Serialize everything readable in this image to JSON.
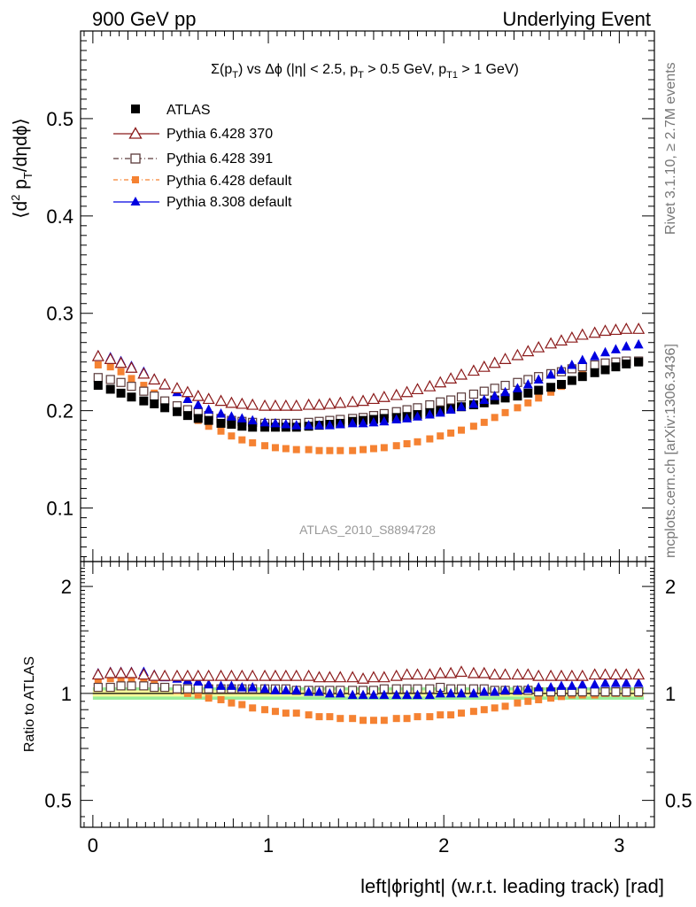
{
  "header": {
    "left": "900 GeV pp",
    "right": "Underlying Event"
  },
  "side_labels": {
    "top": "Rivet 3.1.10, ≥ 2.7M events",
    "bottom": "mcplots.cern.ch [arXiv:1306.3436]"
  },
  "plot_title": "Σ(p_T) vs Δϕ (|η| < 2.5, p_T > 0.5 GeV, p_T1 > 1 GeV)",
  "watermark": "ATLAS_2010_S8894728",
  "main_ylabel": "⟨d² p_T/dηdϕ⟩",
  "ratio_ylabel": "Ratio to ATLAS",
  "xlabel": "left|ϕright| (w.r.t. leading track) [rad]",
  "chart_data": [
    {
      "type": "scatter",
      "panel": "main",
      "xlim": [
        -0.07,
        3.2
      ],
      "ylim": [
        0.045,
        0.59
      ],
      "yticks": [
        "0.1",
        "0.2",
        "0.3",
        "0.4",
        "0.5"
      ],
      "xticks": [
        "0",
        "1",
        "2",
        "3"
      ],
      "x": [
        0.03,
        0.1,
        0.16,
        0.22,
        0.29,
        0.35,
        0.41,
        0.48,
        0.54,
        0.6,
        0.66,
        0.73,
        0.79,
        0.85,
        0.91,
        0.98,
        1.04,
        1.1,
        1.16,
        1.23,
        1.29,
        1.35,
        1.41,
        1.48,
        1.54,
        1.6,
        1.66,
        1.73,
        1.79,
        1.85,
        1.92,
        1.98,
        2.04,
        2.1,
        2.17,
        2.23,
        2.29,
        2.35,
        2.42,
        2.48,
        2.54,
        2.61,
        2.67,
        2.73,
        2.79,
        2.86,
        2.92,
        2.98,
        3.04,
        3.11
      ],
      "series": [
        {
          "name": "ATLAS",
          "color": "#000000",
          "marker": "filled-square",
          "values": [
            0.226,
            0.222,
            0.218,
            0.214,
            0.21,
            0.207,
            0.203,
            0.199,
            0.195,
            0.192,
            0.19,
            0.187,
            0.186,
            0.184,
            0.183,
            0.183,
            0.183,
            0.183,
            0.183,
            0.184,
            0.185,
            0.186,
            0.187,
            0.189,
            0.19,
            0.191,
            0.192,
            0.193,
            0.194,
            0.196,
            0.198,
            0.2,
            0.202,
            0.204,
            0.206,
            0.208,
            0.211,
            0.213,
            0.215,
            0.218,
            0.221,
            0.224,
            0.227,
            0.231,
            0.235,
            0.239,
            0.242,
            0.245,
            0.248,
            0.25
          ]
        },
        {
          "name": "Pythia 6.428 370",
          "color": "#8b1a1a",
          "marker": "open-triangle",
          "values": [
            0.256,
            0.253,
            0.249,
            0.244,
            0.238,
            0.232,
            0.227,
            0.223,
            0.219,
            0.215,
            0.212,
            0.21,
            0.208,
            0.207,
            0.206,
            0.205,
            0.205,
            0.205,
            0.205,
            0.206,
            0.206,
            0.207,
            0.208,
            0.209,
            0.21,
            0.212,
            0.214,
            0.216,
            0.219,
            0.222,
            0.225,
            0.229,
            0.233,
            0.237,
            0.241,
            0.245,
            0.249,
            0.253,
            0.257,
            0.261,
            0.265,
            0.269,
            0.272,
            0.275,
            0.278,
            0.28,
            0.282,
            0.283,
            0.284,
            0.284
          ]
        },
        {
          "name": "Pythia 6.428 391",
          "color": "#5a3a3a",
          "marker": "open-square",
          "values": [
            0.234,
            0.232,
            0.229,
            0.225,
            0.22,
            0.215,
            0.21,
            0.205,
            0.201,
            0.198,
            0.195,
            0.192,
            0.19,
            0.189,
            0.188,
            0.187,
            0.187,
            0.187,
            0.187,
            0.188,
            0.189,
            0.19,
            0.191,
            0.192,
            0.193,
            0.195,
            0.197,
            0.199,
            0.201,
            0.203,
            0.206,
            0.209,
            0.211,
            0.214,
            0.217,
            0.22,
            0.223,
            0.226,
            0.229,
            0.232,
            0.235,
            0.238,
            0.24,
            0.243,
            0.245,
            0.247,
            0.249,
            0.25,
            0.251,
            0.251
          ]
        },
        {
          "name": "Pythia 6.428 default",
          "color": "#f58232",
          "marker": "filled-square",
          "values": [
            0.247,
            0.245,
            0.24,
            0.233,
            0.226,
            0.218,
            0.21,
            0.202,
            0.196,
            0.19,
            0.184,
            0.179,
            0.174,
            0.17,
            0.167,
            0.164,
            0.162,
            0.161,
            0.16,
            0.16,
            0.159,
            0.159,
            0.159,
            0.159,
            0.16,
            0.161,
            0.162,
            0.164,
            0.166,
            0.168,
            0.171,
            0.174,
            0.177,
            0.18,
            0.184,
            0.188,
            0.193,
            0.198,
            0.203,
            0.208,
            0.213,
            0.219,
            0.225,
            0.231,
            0.237,
            0.241,
            0.245,
            0.248,
            0.25,
            0.251
          ]
        },
        {
          "name": "Pythia 8.308 default",
          "color": "#0000e0",
          "marker": "filled-triangle",
          "values": [
            0.257,
            0.255,
            0.251,
            0.246,
            0.24,
            0.233,
            0.226,
            0.219,
            0.212,
            0.206,
            0.201,
            0.197,
            0.194,
            0.192,
            0.19,
            0.188,
            0.187,
            0.186,
            0.185,
            0.185,
            0.185,
            0.185,
            0.186,
            0.187,
            0.187,
            0.188,
            0.189,
            0.191,
            0.192,
            0.194,
            0.196,
            0.198,
            0.201,
            0.204,
            0.207,
            0.211,
            0.215,
            0.219,
            0.223,
            0.227,
            0.232,
            0.237,
            0.242,
            0.247,
            0.252,
            0.256,
            0.26,
            0.263,
            0.266,
            0.268
          ]
        }
      ]
    },
    {
      "type": "scatter",
      "panel": "ratio",
      "ylabel": "Ratio to ATLAS",
      "log_y": true,
      "ylim": [
        0.42,
        2.35
      ],
      "yticks": [
        "0.5",
        "1",
        "2"
      ],
      "xticks": [
        "0",
        "1",
        "2",
        "3"
      ],
      "uncertainty_band": {
        "inner": [
          0.98,
          1.02
        ],
        "outer": [
          0.96,
          1.04
        ],
        "inner_color": "#ffff99",
        "outer_color": "#99ee99"
      },
      "series": [
        {
          "name": "Pythia 6.428 370",
          "values": [
            1.13,
            1.14,
            1.14,
            1.14,
            1.13,
            1.12,
            1.12,
            1.12,
            1.12,
            1.12,
            1.12,
            1.12,
            1.12,
            1.12,
            1.12,
            1.12,
            1.12,
            1.12,
            1.12,
            1.12,
            1.11,
            1.11,
            1.11,
            1.11,
            1.1,
            1.11,
            1.11,
            1.12,
            1.13,
            1.13,
            1.13,
            1.14,
            1.14,
            1.15,
            1.14,
            1.14,
            1.13,
            1.13,
            1.13,
            1.13,
            1.12,
            1.12,
            1.12,
            1.12,
            1.12,
            1.13,
            1.13,
            1.13,
            1.13,
            1.13
          ]
        },
        {
          "name": "Pythia 6.428 391",
          "values": [
            1.04,
            1.04,
            1.05,
            1.05,
            1.05,
            1.04,
            1.04,
            1.03,
            1.03,
            1.03,
            1.03,
            1.03,
            1.03,
            1.03,
            1.03,
            1.03,
            1.03,
            1.03,
            1.02,
            1.02,
            1.02,
            1.02,
            1.02,
            1.02,
            1.02,
            1.02,
            1.03,
            1.03,
            1.03,
            1.03,
            1.03,
            1.04,
            1.03,
            1.03,
            1.03,
            1.03,
            1.02,
            1.02,
            1.02,
            1.02,
            1.01,
            1.01,
            1.01,
            1.01,
            1.01,
            1.01,
            1.01,
            1.01,
            1.01,
            1.01
          ]
        },
        {
          "name": "Pythia 6.428 default",
          "values": [
            1.09,
            1.1,
            1.1,
            1.09,
            1.08,
            1.06,
            1.04,
            1.02,
            1.0,
            0.99,
            0.97,
            0.96,
            0.94,
            0.93,
            0.91,
            0.9,
            0.89,
            0.88,
            0.88,
            0.87,
            0.86,
            0.86,
            0.85,
            0.85,
            0.84,
            0.84,
            0.84,
            0.85,
            0.85,
            0.86,
            0.86,
            0.87,
            0.87,
            0.88,
            0.89,
            0.9,
            0.91,
            0.92,
            0.94,
            0.95,
            0.96,
            0.97,
            0.98,
            0.99,
            0.99,
            0.99,
            1.0,
            1.0,
            1.0,
            1.0
          ]
        },
        {
          "name": "Pythia 8.308 default",
          "values": [
            1.14,
            1.15,
            1.15,
            1.15,
            1.15,
            1.13,
            1.11,
            1.1,
            1.09,
            1.08,
            1.06,
            1.05,
            1.05,
            1.04,
            1.04,
            1.03,
            1.02,
            1.02,
            1.02,
            1.01,
            1.01,
            1.0,
            1.0,
            0.99,
            0.99,
            0.99,
            0.99,
            0.99,
            0.99,
            0.99,
            0.99,
            1.0,
            1.0,
            1.0,
            1.0,
            1.01,
            1.01,
            1.02,
            1.02,
            1.03,
            1.04,
            1.04,
            1.05,
            1.05,
            1.06,
            1.06,
            1.07,
            1.07,
            1.07,
            1.07
          ]
        }
      ]
    }
  ]
}
